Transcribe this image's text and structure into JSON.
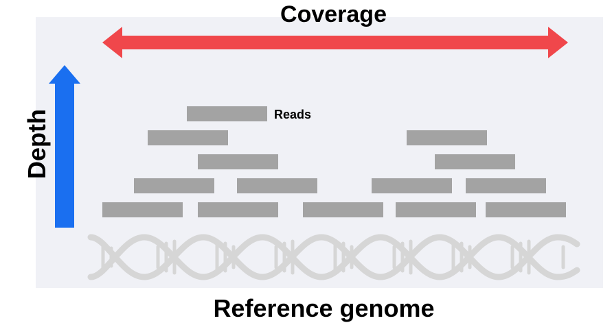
{
  "diagram": {
    "title": "Coverage",
    "axis_vertical_label": "Depth",
    "baseline_label": "Reference genome",
    "reads_label": "Reads",
    "colors": {
      "coverage_arrow": "#f0474b",
      "depth_arrow": "#1a6ff0",
      "read_bar": "#a3a3a3",
      "dna_helix": "#d6d6d6",
      "panel_background": "#f0f1f6"
    },
    "icons": [
      "coverage-double-arrow-icon",
      "depth-up-arrow-icon",
      "dna-helix-icon"
    ]
  }
}
